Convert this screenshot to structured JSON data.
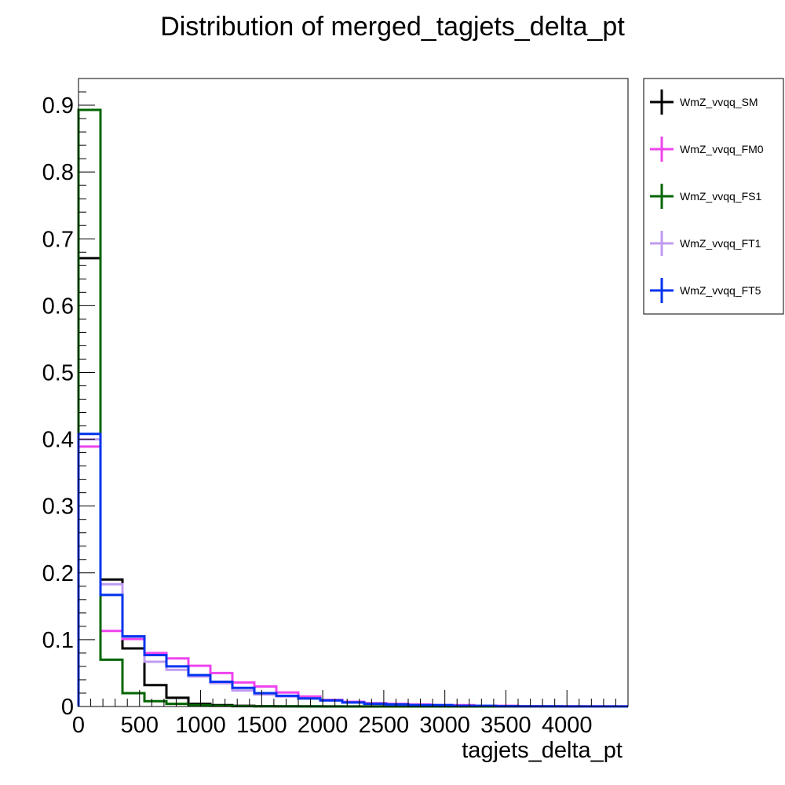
{
  "chart_data": {
    "type": "line",
    "title": "Distribution of merged_tagjets_delta_pt",
    "xlabel": "tagjets_delta_pt",
    "ylabel": "",
    "xlim": [
      0,
      4500
    ],
    "ylim": [
      0,
      0.94
    ],
    "x_ticks": [
      0,
      500,
      1000,
      1500,
      2000,
      2500,
      3000,
      3500,
      4000
    ],
    "y_ticks": [
      0,
      0.1,
      0.2,
      0.3,
      0.4,
      0.5,
      0.6,
      0.7,
      0.8,
      0.9
    ],
    "x_tick_labels": [
      "0",
      "500",
      "1000",
      "1500",
      "2000",
      "2500",
      "3000",
      "3500",
      "4000"
    ],
    "y_tick_labels": [
      "0",
      "0.1",
      "0.2",
      "0.3",
      "0.4",
      "0.5",
      "0.6",
      "0.7",
      "0.8",
      "0.9"
    ],
    "bin_edges": [
      0,
      180,
      360,
      540,
      720,
      900,
      1080,
      1260,
      1440,
      1620,
      1800,
      1980,
      2160,
      2340,
      2520,
      2700,
      2880,
      3060,
      3240,
      3420,
      3600,
      3780,
      3960,
      4140,
      4320,
      4500
    ],
    "grid": false,
    "legend_position": "right",
    "series": [
      {
        "name": "WmZ_vvqq_SM",
        "color": "#000000",
        "values": [
          0.671,
          0.19,
          0.087,
          0.032,
          0.013,
          0.004,
          0.002,
          0.001,
          0.0005,
          0.0003,
          0.0002,
          0.0001,
          0.0001,
          0.0001,
          0,
          0,
          0,
          0,
          0,
          0,
          0,
          0,
          0,
          0,
          0
        ]
      },
      {
        "name": "WmZ_vvqq_FM0",
        "color": "#ee44ee",
        "values": [
          0.389,
          0.113,
          0.101,
          0.08,
          0.072,
          0.061,
          0.05,
          0.036,
          0.03,
          0.021,
          0.015,
          0.01,
          0.007,
          0.005,
          0.004,
          0.003,
          0.002,
          0.002,
          0.001,
          0.001,
          0.0005,
          0.0003,
          0.0002,
          0.0001,
          0.0001
        ]
      },
      {
        "name": "WmZ_vvqq_FS1",
        "color": "#006600",
        "values": [
          0.893,
          0.07,
          0.02,
          0.008,
          0.004,
          0.002,
          0.001,
          0.0005,
          0.0003,
          0.0002,
          0.0001,
          0.0001,
          0,
          0,
          0,
          0,
          0,
          0,
          0,
          0,
          0,
          0,
          0,
          0,
          0
        ]
      },
      {
        "name": "WmZ_vvqq_FT1",
        "color": "#c09cf0",
        "values": [
          0.4,
          0.183,
          0.104,
          0.067,
          0.055,
          0.045,
          0.035,
          0.024,
          0.018,
          0.015,
          0.012,
          0.009,
          0.006,
          0.004,
          0.003,
          0.002,
          0.002,
          0.001,
          0.001,
          0.0005,
          0.0003,
          0.0002,
          0.0001,
          0.0001,
          0.0001
        ]
      },
      {
        "name": "WmZ_vvqq_FT5",
        "color": "#0033ee",
        "values": [
          0.408,
          0.167,
          0.105,
          0.077,
          0.06,
          0.047,
          0.037,
          0.028,
          0.02,
          0.016,
          0.012,
          0.009,
          0.006,
          0.004,
          0.003,
          0.002,
          0.002,
          0.001,
          0.001,
          0.0005,
          0.0003,
          0.0002,
          0.0001,
          0.0001,
          0.0001
        ]
      }
    ]
  }
}
